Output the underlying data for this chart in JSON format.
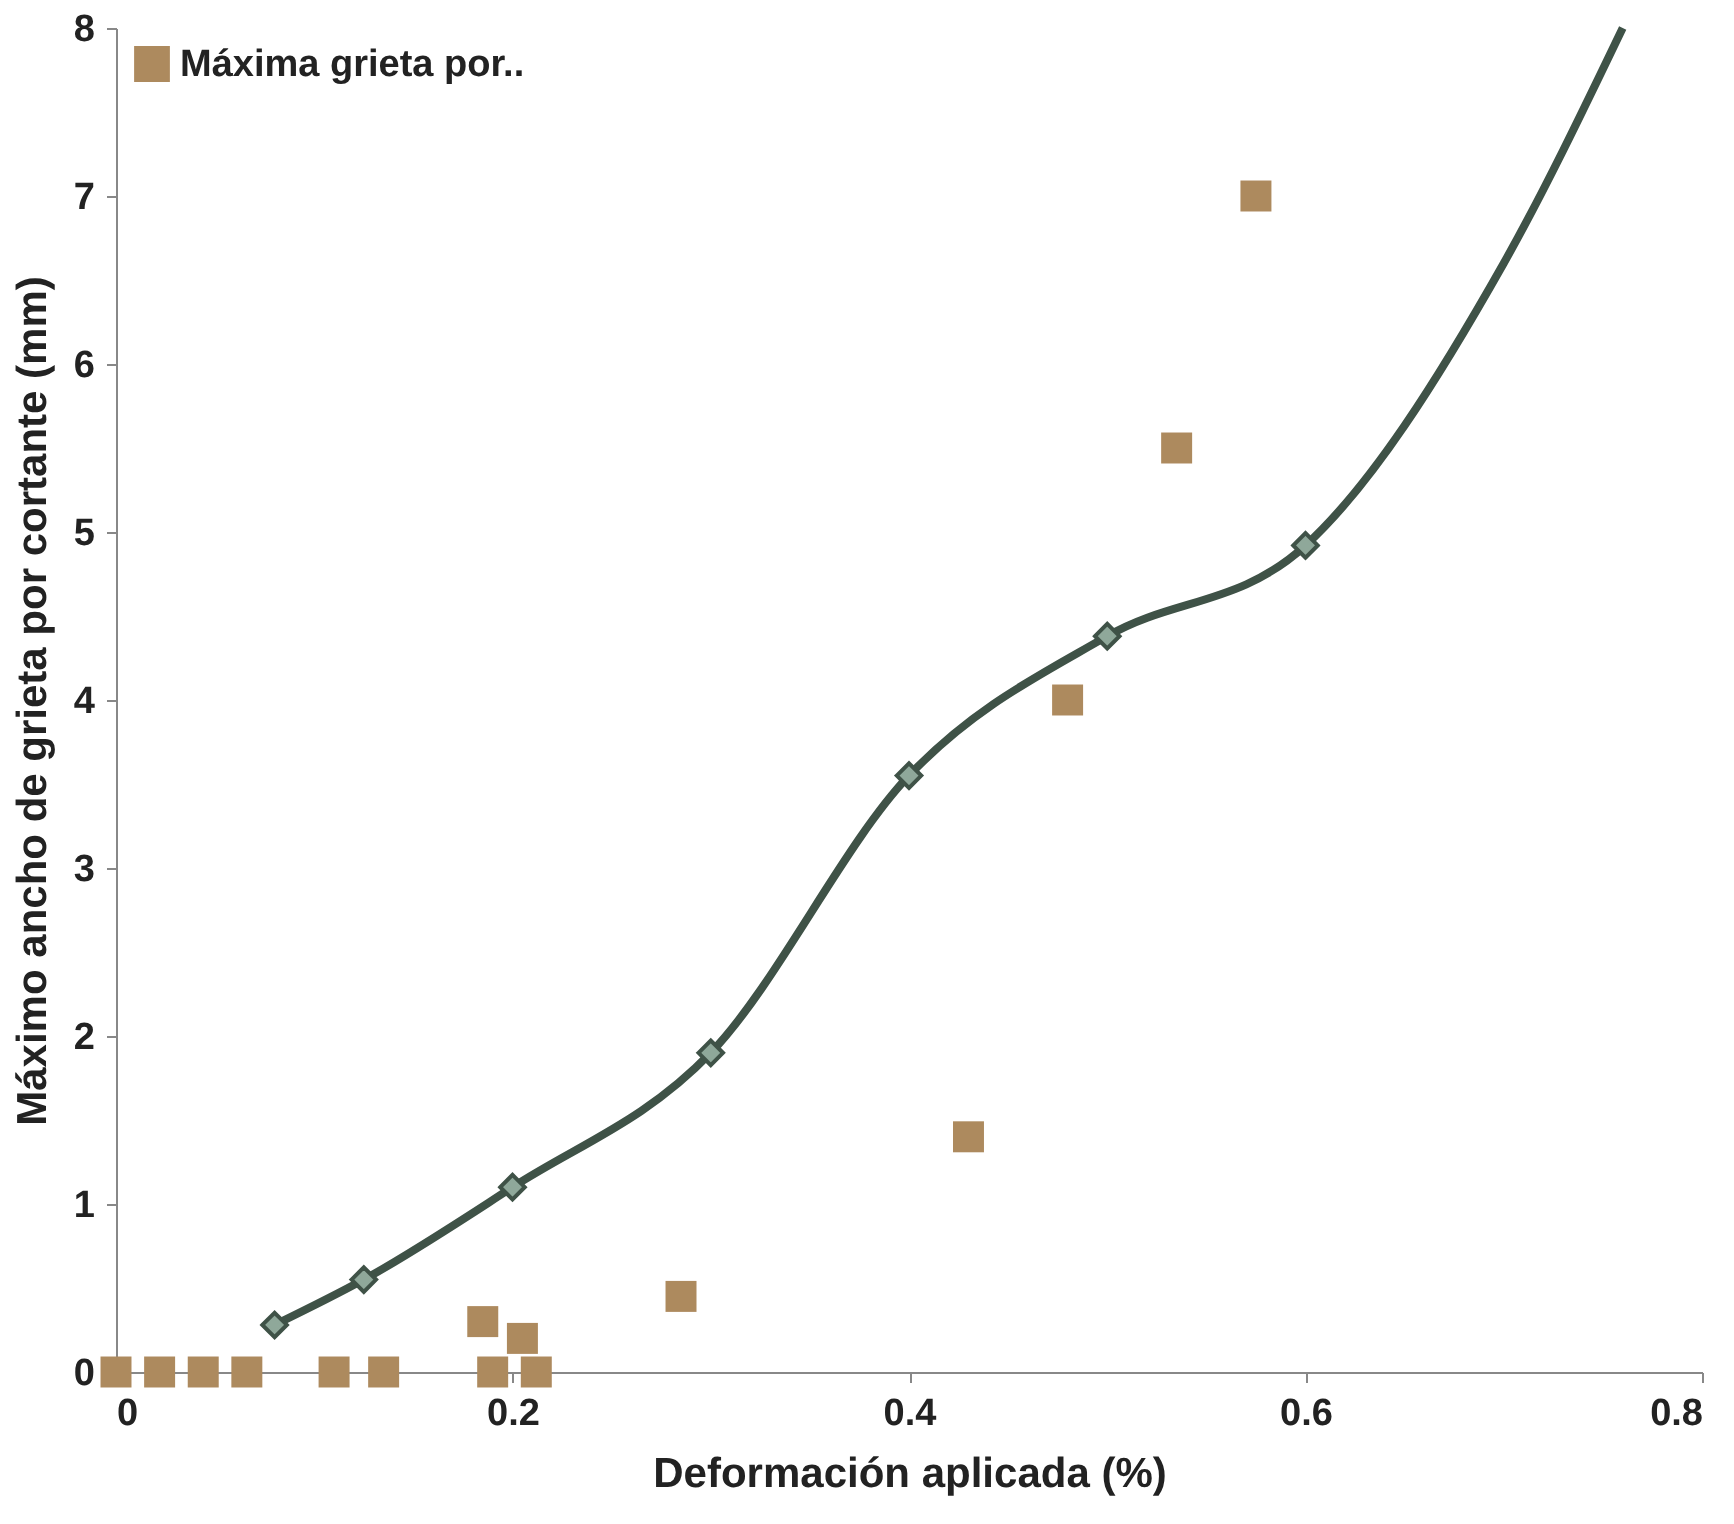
{
  "chart_data": {
    "type": "scatter",
    "xlabel": "Deformación aplicada (%)",
    "ylabel": "Máximo ancho de grieta por cortante (mm)",
    "xlim": [
      0,
      0.8
    ],
    "xticks": [
      0,
      0.2,
      0.4,
      0.6,
      0.8
    ],
    "ylim": [
      0,
      8
    ],
    "yticks": [
      0,
      1,
      2,
      3,
      4,
      5,
      6,
      7,
      8
    ],
    "grid": false,
    "legend": "top left",
    "series": [
      {
        "type": "line",
        "marker": "none",
        "line_style": "solid",
        "color": "#3f5247",
        "x": [
          0.08,
          0.125,
          0.2,
          0.3,
          0.4,
          0.5,
          0.6,
          0.7,
          0.76
        ],
        "values": [
          0.28,
          0.55,
          1.1,
          1.9,
          3.55,
          4.38,
          4.92,
          6.6,
          8
        ]
      },
      {
        "marker": "diamond",
        "color": "#8fa89a",
        "x": [
          0.08,
          0.125,
          0.2,
          0.3,
          0.4,
          0.5,
          0.6
        ],
        "values": [
          0.28,
          0.55,
          1.1,
          1.9,
          3.55,
          4.38,
          4.92
        ]
      },
      {
        "marker": "square",
        "name": "Máxima grieta por..",
        "color": "#ad8a5e",
        "x": [
          0,
          0.022,
          0.044,
          0.066,
          0.11,
          0.135,
          0.185,
          0.19,
          0.205,
          0.212,
          0.285,
          0.43,
          0.48,
          0.535,
          0.575
        ],
        "values": [
          0,
          0,
          0,
          0,
          0,
          0,
          0.3,
          0,
          0.2,
          0,
          0.45,
          1.4,
          4.0,
          5.5,
          7.0
        ]
      }
    ]
  }
}
